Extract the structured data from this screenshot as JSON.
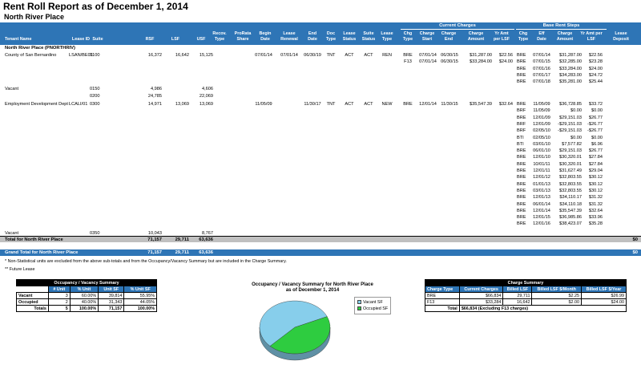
{
  "report": {
    "title": "Rent Roll Report as of December 1, 2014",
    "property": "North River Place"
  },
  "header": {
    "group_current": "Current Charges",
    "group_base": "Base Rent Steps",
    "cols": [
      "Tenant Name",
      "Lease ID",
      "Suite",
      "RSF",
      "LSF",
      "USF",
      "Recov. Type",
      "ProRata Share",
      "Begin Date",
      "Lease Renewal",
      "End Date",
      "Doc Type",
      "Lease Status",
      "Suite Status",
      "Lease Type",
      "Chg Type",
      "Charge Start",
      "Charge End",
      "Charge Amount",
      "Yr Amt per LSF",
      "Chg Type",
      "Eff Date",
      "Charge Amount",
      "Yr Amt per LSF",
      "Lease Deposit"
    ]
  },
  "section_label": "North River Place (PNORTHRIV)",
  "tenants": [
    {
      "name": "County of San Bernardino",
      "lease_id": "LSAN/BE01",
      "suite": "0100",
      "rsf": "16,372",
      "lsf": "16,642",
      "usf": "15,125",
      "begin": "07/01/14",
      "renewal": "07/01/14",
      "end": "06/30/19",
      "doc": "TNT",
      "lstatus": "ACT",
      "sstatus": "ACT",
      "ltype": "REN",
      "charges": [
        [
          "BRE",
          "07/01/14",
          "06/30/15",
          "$31,287.00",
          "$22.56"
        ],
        [
          "F13",
          "07/01/14",
          "06/30/15",
          "$33,284.00",
          "$24.00"
        ]
      ],
      "steps": [
        [
          "BRE",
          "07/01/14",
          "$31,287.00",
          "$22.56"
        ],
        [
          "BRE",
          "07/01/15",
          "$32,285.00",
          "$23.28"
        ],
        [
          "BRE",
          "07/01/16",
          "$33,284.00",
          "$24.00"
        ],
        [
          "BRE",
          "07/01/17",
          "$34,283.00",
          "$24.72"
        ],
        [
          "BRE",
          "07/01/18",
          "$35,281.00",
          "$25.44"
        ]
      ]
    },
    {
      "name": "Vacant",
      "suite": "0150",
      "rsf": "4,986",
      "usf": "4,606"
    },
    {
      "name": "",
      "suite": "0200",
      "rsf": "24,785",
      "usf": "22,069"
    },
    {
      "name": "Employment Development Dept",
      "lease_id": "LCALI/01",
      "suite": "0300",
      "rsf": "14,971",
      "lsf": "13,069",
      "usf": "13,069",
      "begin": "11/05/09",
      "end": "11/30/17",
      "doc": "TNT",
      "lstatus": "ACT",
      "sstatus": "ACT",
      "ltype": "NEW",
      "charges": [
        [
          "BRE",
          "12/01/14",
          "11/30/15",
          "$35,547.39",
          "$32.64"
        ]
      ],
      "steps": [
        [
          "BRE",
          "11/05/09",
          "$36,728.85",
          "$33.72"
        ],
        [
          "BRF",
          "11/05/09",
          "$0.00",
          "$0.00"
        ],
        [
          "BRE",
          "12/01/09",
          "$29,151.03",
          "$26.77"
        ],
        [
          "BRF",
          "12/01/09",
          "-$29,151.03",
          "-$26.77"
        ],
        [
          "BRF",
          "02/05/10",
          "-$29,151.03",
          "-$26.77"
        ],
        [
          "BTI",
          "02/05/10",
          "$0.00",
          "$0.00"
        ],
        [
          "BTI",
          "03/01/10",
          "$7,577.82",
          "$6.96"
        ],
        [
          "BRE",
          "06/01/10",
          "$29,151.03",
          "$26.77"
        ],
        [
          "BRE",
          "12/01/10",
          "$30,320.01",
          "$27.84"
        ],
        [
          "BRE",
          "10/01/11",
          "$30,320.01",
          "$27.84"
        ],
        [
          "BRE",
          "12/01/11",
          "$31,627.49",
          "$29.04"
        ],
        [
          "BRE",
          "12/01/12",
          "$32,803.55",
          "$30.12"
        ],
        [
          "BRE",
          "01/01/13",
          "$32,803.55",
          "$30.12"
        ],
        [
          "BRE",
          "03/01/13",
          "$32,803.55",
          "$30.12"
        ],
        [
          "BRE",
          "12/01/13",
          "$34,110.17",
          "$31.32"
        ],
        [
          "BRE",
          "06/01/14",
          "$34,110.18",
          "$31.32"
        ],
        [
          "BRE",
          "12/01/14",
          "$35,547.39",
          "$32.64"
        ],
        [
          "BRE",
          "12/01/15",
          "$36,985.86",
          "$33.96"
        ],
        [
          "BRE",
          "12/01/16",
          "$38,423.07",
          "$35.28"
        ]
      ]
    },
    {
      "name": "Vacant",
      "suite": "0350",
      "rsf": "10,043",
      "usf": "8,767"
    }
  ],
  "total_property": {
    "label": "Total for North River Place",
    "rsf": "71,157",
    "lsf": "29,711",
    "usf": "63,636",
    "deposit": "$0"
  },
  "grand_total": {
    "label": "Grand Total for North River Place",
    "rsf": "71,157",
    "lsf": "29,711",
    "usf": "63,636",
    "deposit": "$0"
  },
  "notes": [
    "* Non-Statistical units are excluded from the above sub-totals and from the Occupancy/Vacancy Summary but are included in the Charge Summary.",
    "** Future Lease"
  ],
  "occupancy": {
    "title": "Occupancy / Vacancy Summary",
    "cols": [
      "# Unit",
      "% Unit",
      "Unit SF",
      "% Unit SF"
    ],
    "rows": [
      [
        "Vacant",
        "3",
        "60.00%",
        "39,814",
        "55.95%"
      ],
      [
        "Occupied",
        "2",
        "40.00%",
        "31,343",
        "44.05%"
      ]
    ],
    "total": [
      "Totals",
      "5",
      "100.00%",
      "71,157",
      "100.00%"
    ]
  },
  "chart_data": {
    "type": "pie",
    "title": "Occupancy / Vacancy Summary for North River Place",
    "subtitle": "as of December 1, 2014",
    "categories": [
      "Vacant SF",
      "Occupied SF"
    ],
    "values": [
      39814,
      31343
    ],
    "colors": [
      "#87ceeb",
      "#2ecc40"
    ],
    "legend": "right"
  },
  "charge_summary": {
    "title": "Charge Summary",
    "cols": [
      "Charge Type",
      "Current Charges",
      "Billed LSF",
      "Billed LSF $/Month",
      "Billed LSF $/Year"
    ],
    "rows": [
      [
        "BRE",
        "$66,834",
        "29,711",
        "$2.25",
        "$26.99"
      ],
      [
        "F13",
        "$33,284",
        "16,642",
        "$2.00",
        "$24.00"
      ]
    ],
    "total": [
      "Total",
      "$66,834 (Excluding F13 charges)"
    ]
  }
}
